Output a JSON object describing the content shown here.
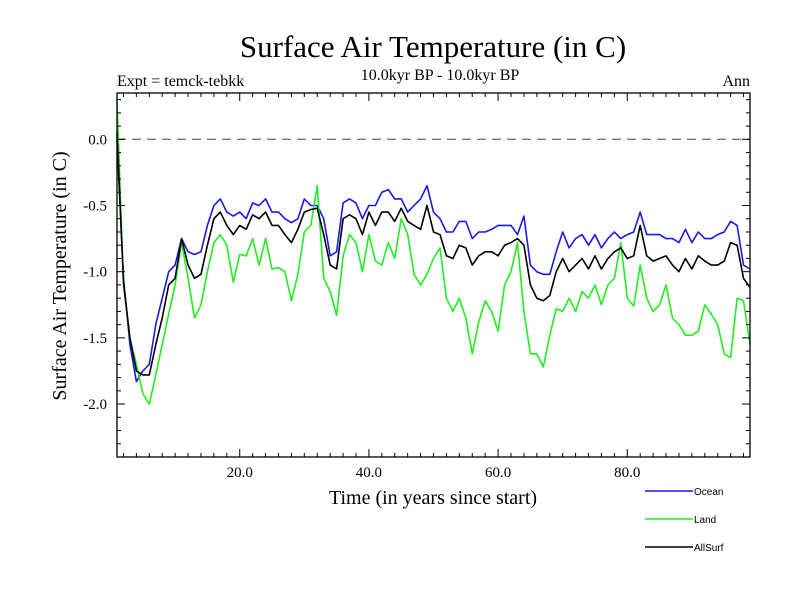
{
  "chart_data": {
    "type": "line",
    "title": "Surface Air Temperature (in C)",
    "subtitle_left": "Expt = temck-tebkk",
    "subtitle_center": "10.0kyr BP - 10.0kyr BP",
    "subtitle_right": "Ann",
    "xlabel": "Time (in years since start)",
    "ylabel": "Surface Air Temperature (in C)",
    "xlim": [
      1,
      99
    ],
    "ylim": [
      -2.4,
      0.35
    ],
    "xticks": [
      20,
      40,
      60,
      80
    ],
    "xtick_labels": [
      "20.0",
      "40.0",
      "60.0",
      "80.0"
    ],
    "yticks": [
      0.0,
      -0.5,
      -1.0,
      -1.5,
      -2.0
    ],
    "ytick_labels": [
      "0.0",
      "-0.5",
      "-1.0",
      "-1.5",
      "-2.0"
    ],
    "reference_line": 0.0,
    "legend_position": "bottom-right",
    "x": [
      1,
      2,
      3,
      4,
      5,
      6,
      7,
      8,
      9,
      10,
      11,
      12,
      13,
      14,
      15,
      16,
      17,
      18,
      19,
      20,
      21,
      22,
      23,
      24,
      25,
      26,
      27,
      28,
      29,
      30,
      31,
      32,
      33,
      34,
      35,
      36,
      37,
      38,
      39,
      40,
      41,
      42,
      43,
      44,
      45,
      46,
      47,
      48,
      49,
      50,
      51,
      52,
      53,
      54,
      55,
      56,
      57,
      58,
      59,
      60,
      61,
      62,
      63,
      64,
      65,
      66,
      67,
      68,
      69,
      70,
      71,
      72,
      73,
      74,
      75,
      76,
      77,
      78,
      79,
      80,
      81,
      82,
      83,
      84,
      85,
      86,
      87,
      88,
      89,
      90,
      91,
      92,
      93,
      94,
      95,
      96,
      97,
      98,
      99
    ],
    "series": [
      {
        "name": "Ocean",
        "color": "#1a1ae6",
        "values": [
          0.0,
          -1.05,
          -1.55,
          -1.83,
          -1.75,
          -1.7,
          -1.4,
          -1.2,
          -1.0,
          -0.95,
          -0.75,
          -0.85,
          -0.87,
          -0.85,
          -0.65,
          -0.5,
          -0.45,
          -0.55,
          -0.58,
          -0.55,
          -0.6,
          -0.48,
          -0.5,
          -0.45,
          -0.55,
          -0.55,
          -0.6,
          -0.63,
          -0.6,
          -0.45,
          -0.5,
          -0.5,
          -0.6,
          -0.88,
          -0.85,
          -0.48,
          -0.45,
          -0.48,
          -0.6,
          -0.5,
          -0.5,
          -0.4,
          -0.38,
          -0.45,
          -0.45,
          -0.55,
          -0.5,
          -0.45,
          -0.35,
          -0.55,
          -0.6,
          -0.7,
          -0.7,
          -0.62,
          -0.62,
          -0.75,
          -0.7,
          -0.7,
          -0.68,
          -0.65,
          -0.65,
          -0.65,
          -0.72,
          -0.58,
          -0.95,
          -1.0,
          -1.02,
          -1.02,
          -0.85,
          -0.7,
          -0.82,
          -0.75,
          -0.72,
          -0.8,
          -0.72,
          -0.82,
          -0.75,
          -0.7,
          -0.75,
          -0.72,
          -0.7,
          -0.55,
          -0.72,
          -0.72,
          -0.72,
          -0.75,
          -0.75,
          -0.78,
          -0.68,
          -0.78,
          -0.7,
          -0.75,
          -0.75,
          -0.72,
          -0.7,
          -0.62,
          -0.65,
          -0.95,
          -0.98
        ]
      },
      {
        "name": "Land",
        "color": "#22ee22",
        "values": [
          0.3,
          -1.1,
          -1.5,
          -1.7,
          -1.92,
          -2.0,
          -1.78,
          -1.55,
          -1.32,
          -1.1,
          -0.78,
          -1.05,
          -1.35,
          -1.25,
          -1.0,
          -0.78,
          -0.72,
          -0.8,
          -1.08,
          -0.87,
          -0.88,
          -0.75,
          -0.95,
          -0.75,
          -0.98,
          -0.97,
          -1.0,
          -1.22,
          -1.02,
          -0.7,
          -0.65,
          -0.35,
          -1.05,
          -1.15,
          -1.33,
          -0.88,
          -0.72,
          -0.78,
          -1.0,
          -0.72,
          -0.92,
          -0.95,
          -0.78,
          -0.9,
          -0.6,
          -0.72,
          -1.02,
          -1.1,
          -1.02,
          -0.9,
          -0.82,
          -1.2,
          -1.3,
          -1.2,
          -1.35,
          -1.62,
          -1.38,
          -1.22,
          -1.3,
          -1.45,
          -1.1,
          -1.0,
          -0.78,
          -1.3,
          -1.62,
          -1.62,
          -1.72,
          -1.48,
          -1.28,
          -1.3,
          -1.2,
          -1.3,
          -1.15,
          -1.2,
          -1.1,
          -1.25,
          -1.1,
          -1.05,
          -0.78,
          -1.2,
          -1.26,
          -0.95,
          -1.2,
          -1.3,
          -1.25,
          -1.1,
          -1.35,
          -1.4,
          -1.48,
          -1.48,
          -1.45,
          -1.25,
          -1.32,
          -1.4,
          -1.62,
          -1.65,
          -1.2,
          -1.22,
          -1.55
        ]
      },
      {
        "name": "AllSurf",
        "color": "#000000",
        "values": [
          0.05,
          -1.08,
          -1.5,
          -1.75,
          -1.78,
          -1.78,
          -1.55,
          -1.35,
          -1.1,
          -1.05,
          -0.75,
          -0.95,
          -1.05,
          -1.02,
          -0.8,
          -0.6,
          -0.55,
          -0.65,
          -0.72,
          -0.65,
          -0.68,
          -0.57,
          -0.6,
          -0.55,
          -0.65,
          -0.65,
          -0.72,
          -0.78,
          -0.68,
          -0.55,
          -0.53,
          -0.52,
          -0.72,
          -0.95,
          -0.98,
          -0.6,
          -0.57,
          -0.6,
          -0.72,
          -0.55,
          -0.65,
          -0.55,
          -0.55,
          -0.62,
          -0.52,
          -0.62,
          -0.65,
          -0.68,
          -0.5,
          -0.7,
          -0.72,
          -0.88,
          -0.9,
          -0.8,
          -0.82,
          -0.95,
          -0.88,
          -0.85,
          -0.85,
          -0.88,
          -0.8,
          -0.78,
          -0.75,
          -0.8,
          -1.1,
          -1.2,
          -1.22,
          -1.18,
          -1.0,
          -0.9,
          -1.0,
          -0.95,
          -0.9,
          -0.98,
          -0.88,
          -0.98,
          -0.9,
          -0.85,
          -0.82,
          -0.9,
          -0.88,
          -0.65,
          -0.88,
          -0.92,
          -0.9,
          -0.88,
          -0.95,
          -1.0,
          -0.9,
          -0.98,
          -0.88,
          -0.92,
          -0.95,
          -0.95,
          -0.92,
          -0.78,
          -0.8,
          -1.05,
          -1.12
        ]
      }
    ]
  }
}
